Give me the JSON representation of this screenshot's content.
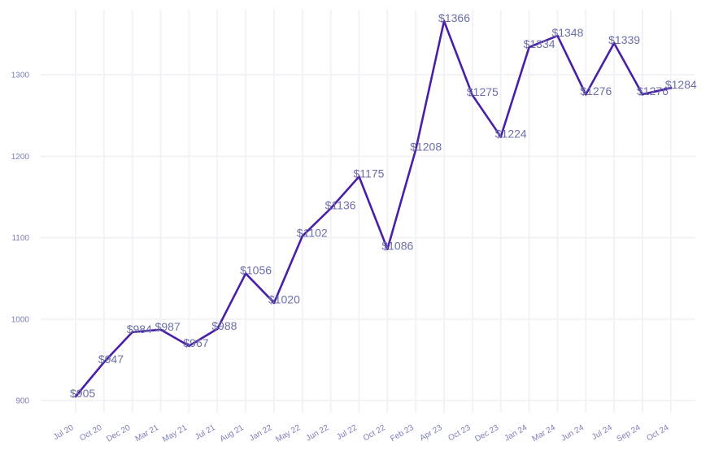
{
  "colors": {
    "line": "#4a1fa8",
    "grid": "#f2f2f7",
    "tick_text": "#7b7fb8",
    "label_text": "#6b6fa8",
    "background": "#ffffff"
  },
  "chart_data": {
    "type": "line",
    "title": "",
    "xlabel": "",
    "ylabel": "",
    "grid": true,
    "legend": "none",
    "ylim": [
      885,
      1380
    ],
    "y_ticks": [
      900,
      1000,
      1100,
      1200,
      1300
    ],
    "y_tick_labels": [
      "900",
      "1000",
      "1100",
      "1200",
      "1300"
    ],
    "categories": [
      "Jul 20",
      "Oct 20",
      "Dec 20",
      "Mar 21",
      "May 21",
      "Jul 21",
      "Aug 21",
      "Jan 22",
      "May 22",
      "Jun 22",
      "Jul 22",
      "Oct 22",
      "Feb 23",
      "Apr 23",
      "Oct 23",
      "Dec 23",
      "Jan 24",
      "Mar 24",
      "Jun 24",
      "Jul 24",
      "Sep 24",
      "Oct 24"
    ],
    "series": [
      {
        "values": [
          905,
          947,
          984,
          987,
          967,
          988,
          1056,
          1020,
          1102,
          1136,
          1175,
          1086,
          1208,
          1366,
          1275,
          1224,
          1334,
          1348,
          1276,
          1339,
          1276,
          1284
        ],
        "labels": [
          "$905",
          "$947",
          "$984",
          "$987",
          "$967",
          "$988",
          "$1056",
          "$1020",
          "$1102",
          "$1136",
          "$1175",
          "$1086",
          "$1208",
          "$1366",
          "$1275",
          "$1224",
          "$1334",
          "$1348",
          "$1276",
          "$1339",
          "$1276",
          "$1284"
        ]
      }
    ]
  }
}
